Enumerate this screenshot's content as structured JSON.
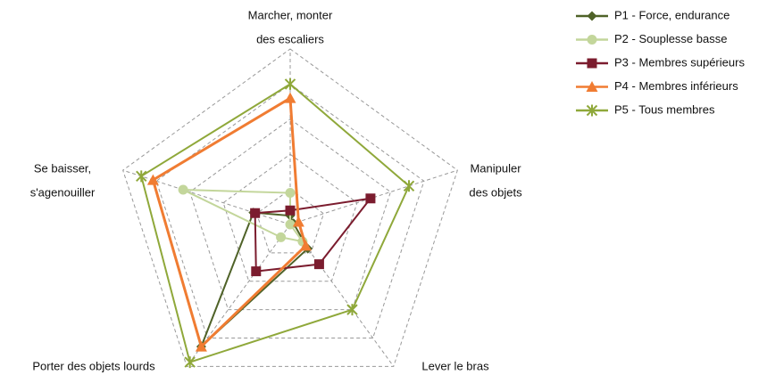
{
  "chart_data": {
    "type": "radar",
    "categories": [
      [
        "Marcher, monter",
        "des escaliers"
      ],
      [
        "Manipuler",
        "des objets"
      ],
      [
        "Lever le bras"
      ],
      [
        "Porter des objets lourds"
      ],
      [
        "Se baisser,",
        "s'agenouiller"
      ]
    ],
    "rlim": [
      0,
      1
    ],
    "rticks": [
      0.2,
      0.4,
      0.6,
      0.8,
      1.0
    ],
    "grid": true,
    "legend": "top-right",
    "series": [
      {
        "name": "P1 - Force, endurance",
        "color": "#4f6228",
        "marker": "diamond",
        "values": [
          0.05,
          0.02,
          0.17,
          0.86,
          0.22
        ]
      },
      {
        "name": "P2 - Souplesse basse",
        "color": "#c3d69b",
        "marker": "circle",
        "values": [
          0.18,
          0.0,
          0.12,
          0.09,
          0.64
        ]
      },
      {
        "name": "P3 - Membres supérieurs",
        "color": "#7b1c2e",
        "marker": "square",
        "values": [
          0.08,
          0.48,
          0.28,
          0.33,
          0.21
        ]
      },
      {
        "name": "P4 - Membres inférieurs",
        "color": "#f07c32",
        "marker": "triangle",
        "values": [
          0.72,
          0.05,
          0.15,
          0.86,
          0.82
        ]
      },
      {
        "name": "P5 - Tous membres",
        "color": "#8fa83a",
        "marker": "star",
        "values": [
          0.8,
          0.71,
          0.6,
          0.97,
          0.89
        ]
      }
    ]
  }
}
